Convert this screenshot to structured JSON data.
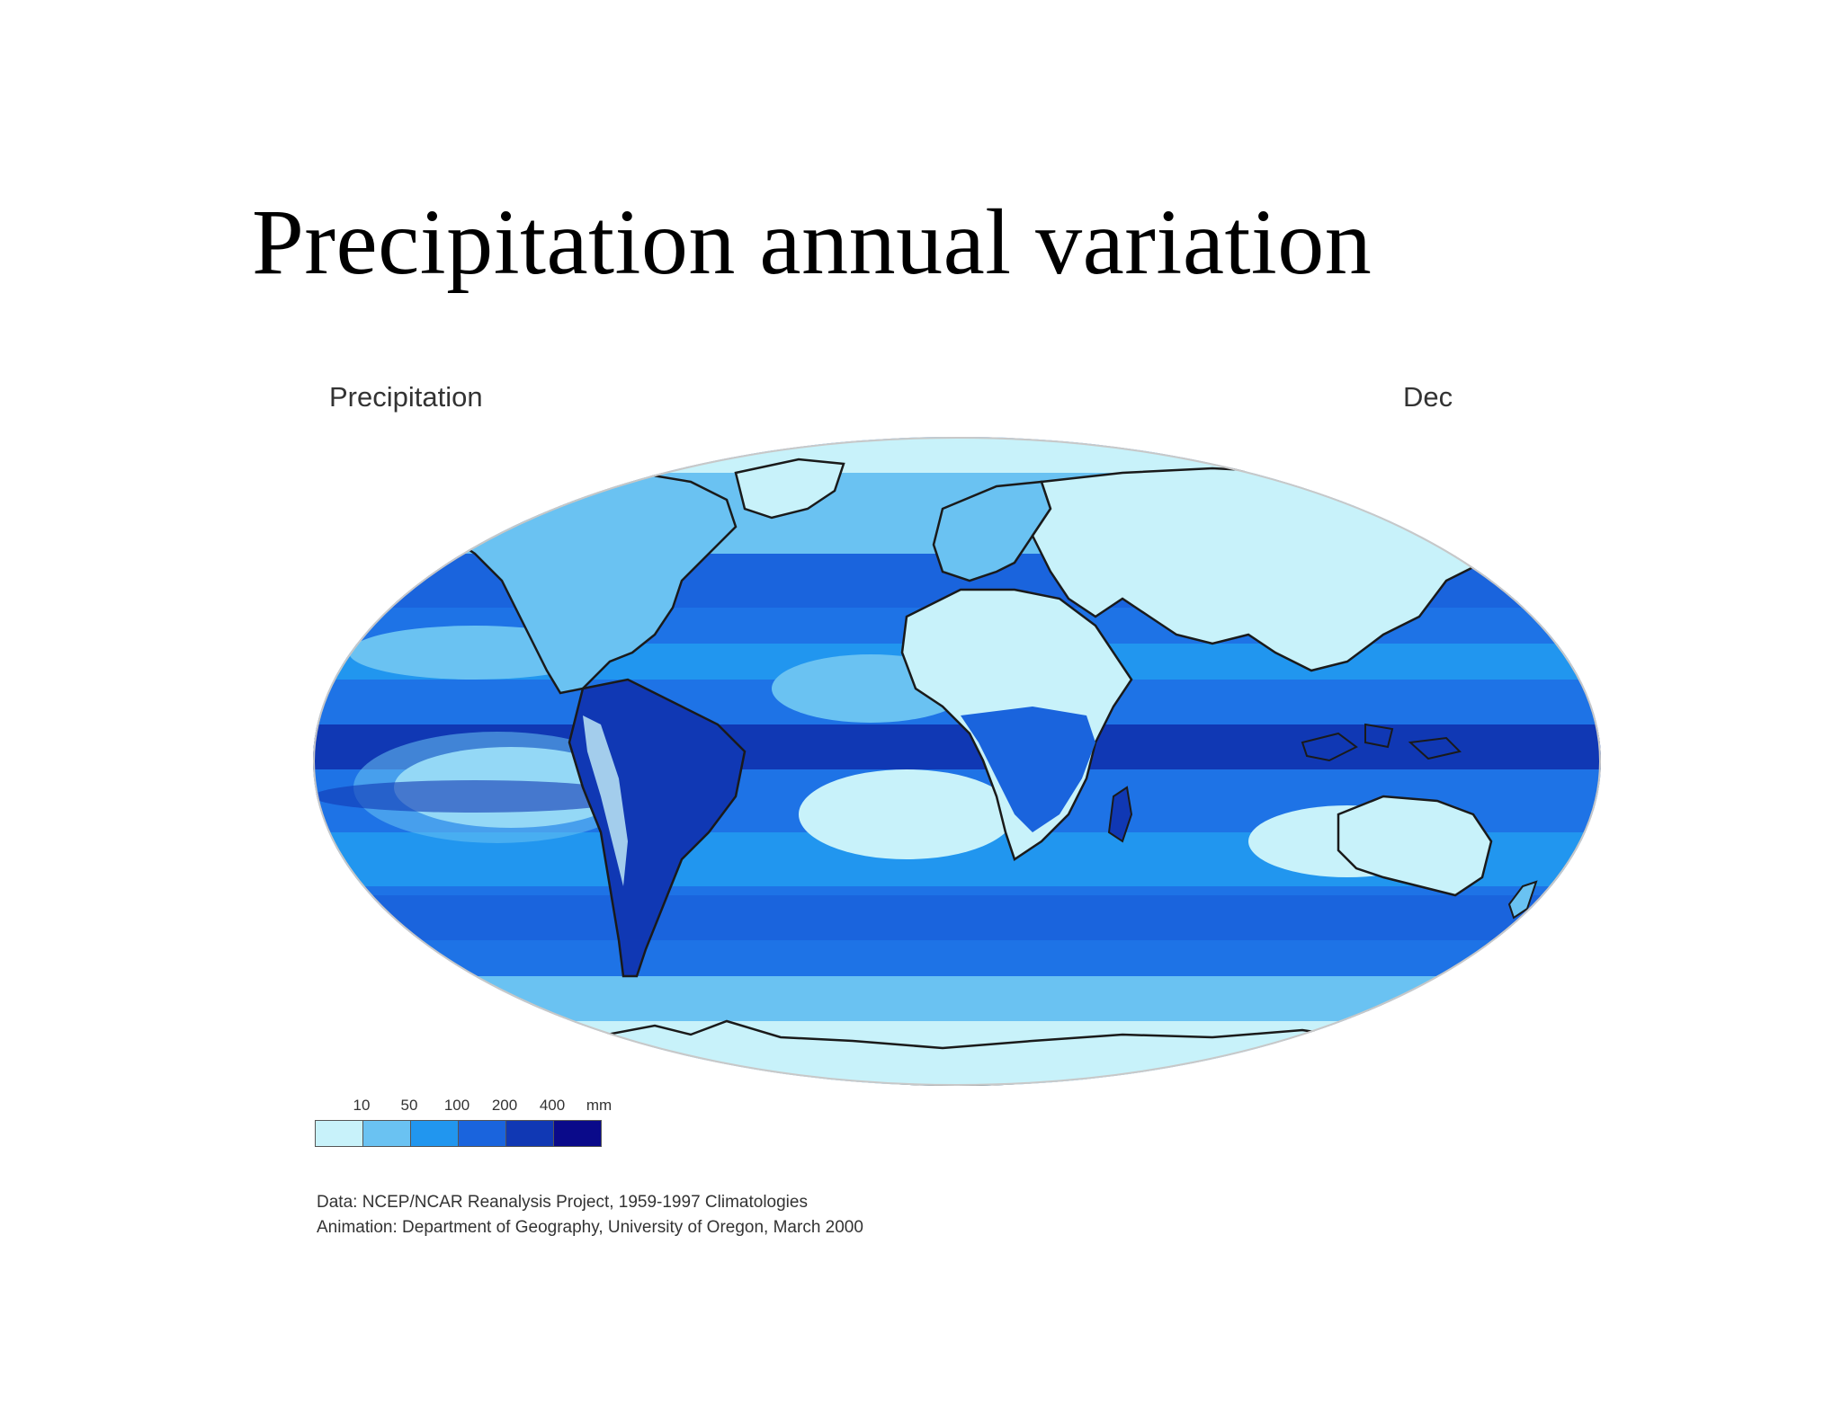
{
  "slide": {
    "title": "Precipitation annual variation"
  },
  "map": {
    "variable_label": "Precipitation",
    "month_label": "Dec",
    "colors": {
      "ocean_base": "#1e73e6",
      "outline": "#1a1a1a"
    }
  },
  "legend": {
    "ticks": [
      "10",
      "50",
      "100",
      "200",
      "400"
    ],
    "unit": "mm",
    "colors": [
      "#c8f2fa",
      "#6ac2f2",
      "#2196ef",
      "#1a64dd",
      "#1038b4",
      "#0a0a8a"
    ]
  },
  "credits": {
    "data_line": "Data:  NCEP/NCAR Reanalysis Project, 1959-1997 Climatologies",
    "animation_line": "Animation:  Department of Geography, University of Oregon, March 2000"
  }
}
